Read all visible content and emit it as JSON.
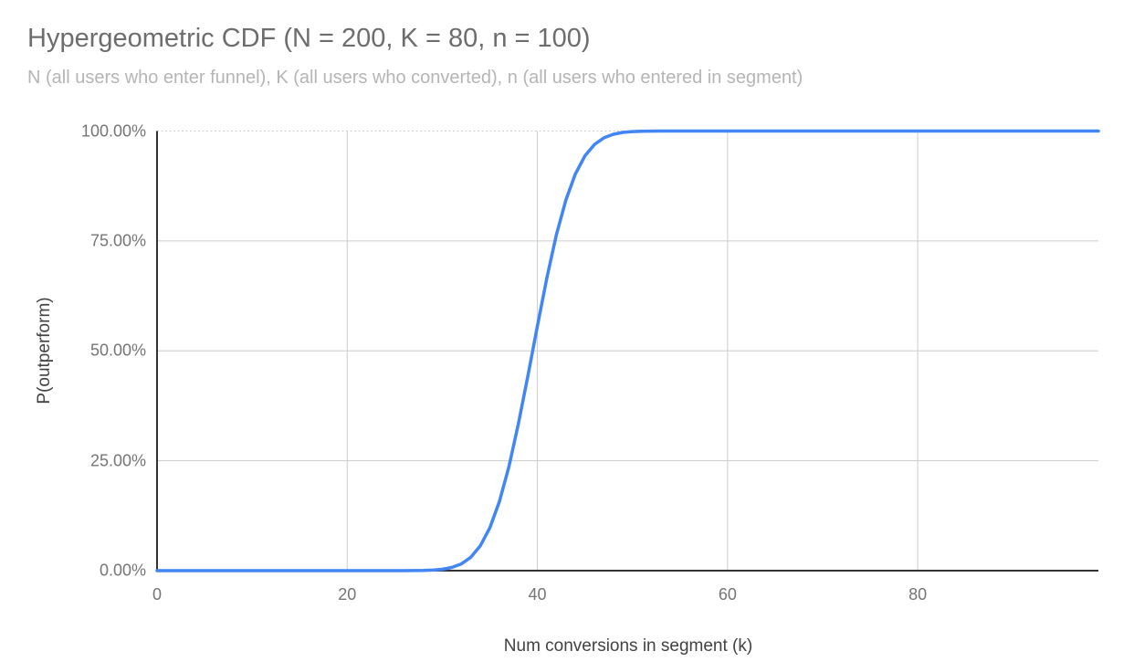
{
  "chart_data": {
    "type": "line",
    "title": "Hypergeometric CDF (N = 200, K = 80, n = 100)",
    "subtitle": "N (all users who enter funnel), K (all users who converted), n (all users who entered in segment)",
    "params": {
      "N": 200,
      "K": 80,
      "n": 100
    },
    "xlabel": "Num conversions in segment (k)",
    "ylabel": "P(outperform)",
    "xlim": [
      0,
      99
    ],
    "ylim": [
      0,
      1
    ],
    "grid": true,
    "legend": "none",
    "background_color": "#ffffff",
    "gridline_color": "#cccccc",
    "axis_line_color": "#333333",
    "tick_label_color": "#757575",
    "axis_title_color": "#424242",
    "title_color": "#6d6d6d",
    "subtitle_color": "#b5b5b5",
    "x_ticks": [
      {
        "value": 0,
        "label": "0"
      },
      {
        "value": 20,
        "label": "20"
      },
      {
        "value": 40,
        "label": "40"
      },
      {
        "value": 60,
        "label": "60"
      },
      {
        "value": 80,
        "label": "80"
      }
    ],
    "y_ticks": [
      {
        "value": 0,
        "label": "0.00%"
      },
      {
        "value": 0.25,
        "label": "25.00%"
      },
      {
        "value": 0.5,
        "label": "50.00%"
      },
      {
        "value": 0.75,
        "label": "75.00%"
      },
      {
        "value": 1,
        "label": "100.00%"
      }
    ],
    "series": [
      {
        "name": "P(outperform)",
        "color": "#4285f4",
        "points": [
          [
            0,
            0
          ],
          [
            5,
            0
          ],
          [
            10,
            0
          ],
          [
            15,
            0
          ],
          [
            20,
            0
          ],
          [
            24,
            0
          ],
          [
            25,
            0.0
          ],
          [
            26,
            0.0001
          ],
          [
            27,
            0.0002
          ],
          [
            28,
            0.0005
          ],
          [
            29,
            0.0013
          ],
          [
            30,
            0.0031
          ],
          [
            31,
            0.0072
          ],
          [
            32,
            0.0153
          ],
          [
            33,
            0.0306
          ],
          [
            34,
            0.0567
          ],
          [
            35,
            0.0975
          ],
          [
            36,
            0.1567
          ],
          [
            37,
            0.2358
          ],
          [
            38,
            0.3335
          ],
          [
            39,
            0.4434
          ],
          [
            40,
            0.5566
          ],
          [
            41,
            0.6665
          ],
          [
            42,
            0.7642
          ],
          [
            43,
            0.8433
          ],
          [
            44,
            0.9025
          ],
          [
            45,
            0.9433
          ],
          [
            46,
            0.9694
          ],
          [
            47,
            0.9847
          ],
          [
            48,
            0.9928
          ],
          [
            49,
            0.9969
          ],
          [
            50,
            0.9987
          ],
          [
            51,
            0.9995
          ],
          [
            52,
            0.9998
          ],
          [
            53,
            0.9999
          ],
          [
            54,
            1
          ],
          [
            55,
            1
          ],
          [
            60,
            1
          ],
          [
            70,
            1
          ],
          [
            80,
            1
          ],
          [
            90,
            1
          ],
          [
            99,
            1
          ]
        ]
      }
    ]
  }
}
